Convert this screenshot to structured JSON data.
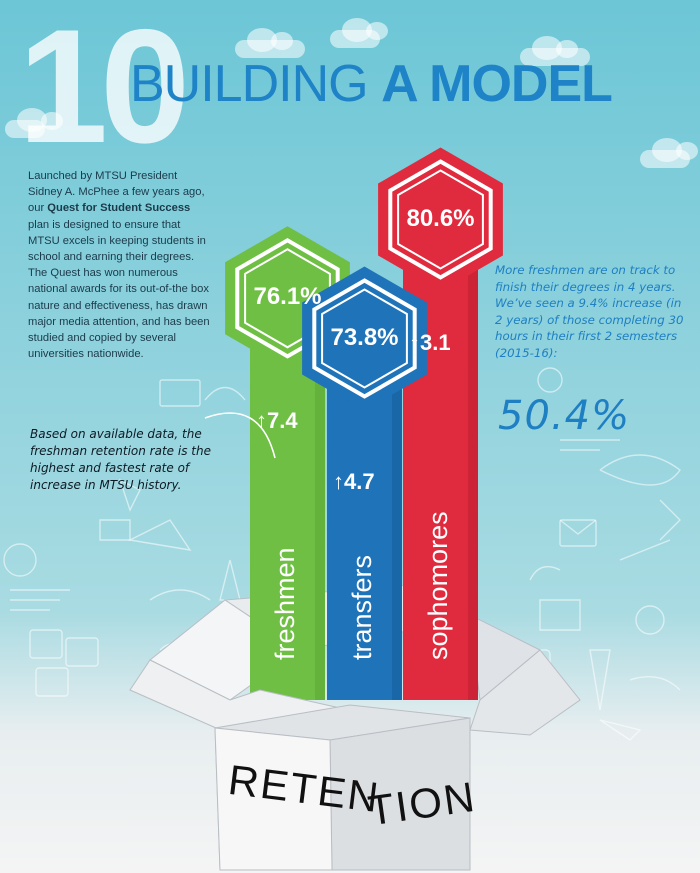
{
  "header": {
    "number": "10",
    "title_light": "BUILDING ",
    "title_bold": "A MODEL"
  },
  "intro": {
    "part1": "Launched by MTSU President Sidney A. McPhee a few years ago, our ",
    "emphasis": "Quest for Student Success",
    "part2": " plan is designed to ensure that MTSU excels in keeping students in school and earning their degrees. The Quest has won numerous national awards for its out-of-the box nature and effectiveness, has drawn major media attention, and has been studied and copied by several universities nationwide."
  },
  "note_left": "Based on available data, the freshman retention rate is the highest and fastest rate of increase in MTSU history.",
  "note_right": "More freshmen are on track to finish their degrees in 4 years. We’ve seen a 9.4% increase (in 2 years) of those completing 30 hours in their first 2 semesters (2015-16):",
  "big_percent": "50.4%",
  "chart_data": {
    "type": "bar",
    "categories": [
      "freshmen",
      "transfers",
      "sophomores"
    ],
    "values": [
      76.1,
      73.8,
      80.6
    ],
    "value_labels": [
      "76.1%",
      "73.8%",
      "80.6%"
    ],
    "increases": [
      7.4,
      4.7,
      3.1
    ],
    "increase_labels": [
      "7.4",
      "4.7",
      "3.1"
    ],
    "colors": [
      "#6fbf44",
      "#1f73b9",
      "#e02a3d"
    ]
  },
  "box": {
    "word_part1": "RETEN",
    "word_part2": "TION"
  }
}
